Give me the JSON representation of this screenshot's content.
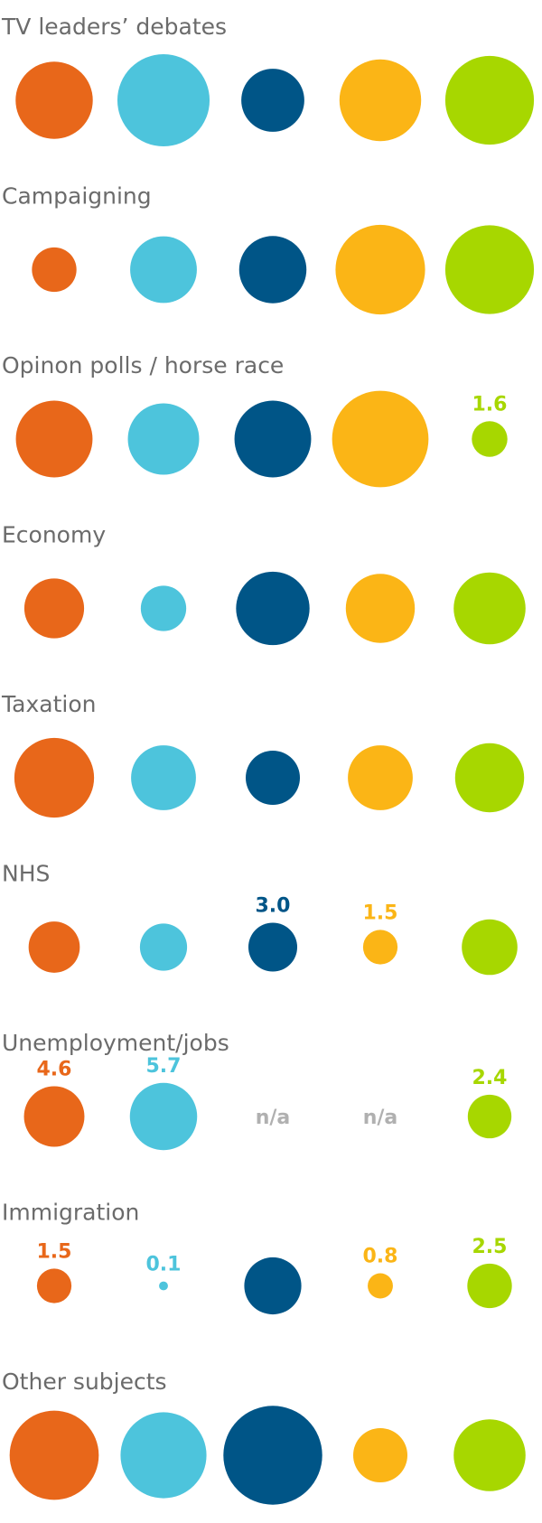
{
  "colors": {
    "series": [
      "#e8671a",
      "#4dc4dc",
      "#005587",
      "#fbb516",
      "#a7d700"
    ],
    "title_text": "#6b6b6b",
    "na_text": "#b0b0b0"
  },
  "chart_data": {
    "type": "bubble-grid",
    "na_label": "n/a",
    "rows": [
      {
        "title": "TV leaders’ debates",
        "values": [
          7.5,
          10.7,
          5.0,
          8.4,
          9.9
        ],
        "labels": [
          "",
          "",
          "",
          "",
          ""
        ]
      },
      {
        "title": "Campaigning",
        "values": [
          2.5,
          5.6,
          5.7,
          10.1,
          9.9
        ],
        "labels": [
          "",
          "",
          "",
          "",
          ""
        ]
      },
      {
        "title": "Opinon polls / horse race",
        "values": [
          7.4,
          6.4,
          7.4,
          11.7,
          1.6
        ],
        "labels": [
          "",
          "",
          "",
          "",
          "1.6"
        ]
      },
      {
        "title": "Economy",
        "values": [
          4.5,
          2.6,
          6.8,
          6.0,
          6.5
        ],
        "labels": [
          "",
          "",
          "",
          "",
          ""
        ]
      },
      {
        "title": "Taxation",
        "values": [
          8.0,
          5.3,
          3.7,
          5.3,
          6.0
        ],
        "labels": [
          "",
          "",
          "",
          "",
          ""
        ]
      },
      {
        "title": "NHS",
        "values": [
          3.3,
          2.8,
          3.0,
          1.5,
          3.9
        ],
        "labels": [
          "",
          "",
          "3.0",
          "1.5",
          ""
        ]
      },
      {
        "title": "Unemployment/jobs",
        "values": [
          4.6,
          5.7,
          null,
          null,
          2.4
        ],
        "labels": [
          "4.6",
          "5.7",
          "",
          "",
          "2.4"
        ]
      },
      {
        "title": "Immigration",
        "values": [
          1.5,
          0.1,
          4.1,
          0.8,
          2.5
        ],
        "labels": [
          "1.5",
          "0.1",
          "",
          "0.8",
          "2.5"
        ]
      },
      {
        "title": "Other subjects",
        "values": [
          10.0,
          9.3,
          12.3,
          3.7,
          6.5
        ],
        "labels": [
          "",
          "",
          "",
          "",
          ""
        ]
      }
    ]
  }
}
